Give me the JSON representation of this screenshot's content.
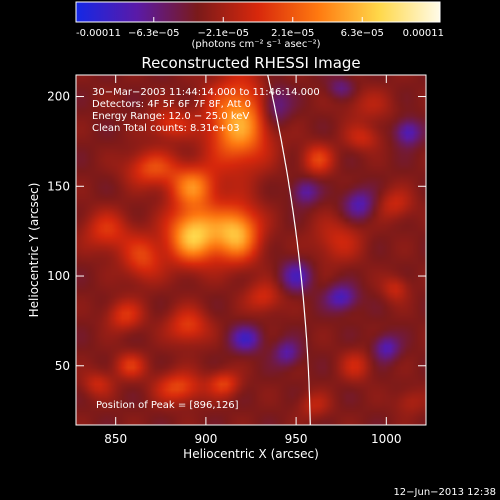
{
  "colorbar": {
    "tick_labels": [
      "-0.00011",
      "−6.3e−05",
      "−2.1e−05",
      "2.1e−05",
      "6.3e−05",
      "0.00011"
    ],
    "tick_values": [
      -0.00011,
      -6.3e-05,
      -2.1e-05,
      2.1e-05,
      6.3e-05,
      0.00011
    ],
    "range": [
      -0.00011,
      0.00011
    ],
    "unit_label": "(photons cm⁻² s⁻¹ asec⁻²)",
    "colors": [
      "#1428e6",
      "#5a1aa8",
      "#7a1a1a",
      "#d8280c",
      "#ff7a10",
      "#ffd84a",
      "#fffbe8"
    ]
  },
  "chart_data": {
    "type": "heatmap",
    "title": "Reconstructed RHESSI Image",
    "xlabel": "Heliocentric X (arcsec)",
    "ylabel": "Heliocentric Y (arcsec)",
    "xlim": [
      828,
      1022
    ],
    "ylim": [
      17,
      212
    ],
    "x_ticks": [
      850,
      900,
      950,
      1000
    ],
    "y_ticks": [
      50,
      100,
      150,
      200
    ],
    "x_tick_labels": [
      "850",
      "900",
      "950",
      "1000"
    ],
    "y_tick_labels": [
      "50",
      "100",
      "150",
      "200"
    ],
    "peak": [
      896,
      126
    ],
    "sources": [
      {
        "x": 893,
        "y": 123,
        "sx": 10,
        "sy": 11,
        "a": 0.000105
      },
      {
        "x": 917,
        "y": 124,
        "sx": 9,
        "sy": 11,
        "a": 9.5e-05
      },
      {
        "x": 918,
        "y": 185,
        "sx": 12,
        "sy": 17,
        "a": 9e-05
      },
      {
        "x": 893,
        "y": 150,
        "sx": 9,
        "sy": 8,
        "a": 7e-05
      },
      {
        "x": 870,
        "y": 160,
        "sx": 10,
        "sy": 7,
        "a": 5e-05
      },
      {
        "x": 880,
        "y": 185,
        "sx": 8,
        "sy": 6,
        "a": 4e-05
      },
      {
        "x": 865,
        "y": 110,
        "sx": 8,
        "sy": 9,
        "a": 4.5e-05
      },
      {
        "x": 845,
        "y": 125,
        "sx": 9,
        "sy": 8,
        "a": 4e-05
      },
      {
        "x": 855,
        "y": 78,
        "sx": 7,
        "sy": 6,
        "a": 4e-05
      },
      {
        "x": 890,
        "y": 72,
        "sx": 8,
        "sy": 7,
        "a": 4.5e-05
      },
      {
        "x": 858,
        "y": 50,
        "sx": 6,
        "sy": 5,
        "a": 4e-05
      },
      {
        "x": 885,
        "y": 38,
        "sx": 9,
        "sy": 6,
        "a": 5e-05
      },
      {
        "x": 910,
        "y": 40,
        "sx": 6,
        "sy": 5,
        "a": 4.5e-05
      },
      {
        "x": 840,
        "y": 40,
        "sx": 6,
        "sy": 5,
        "a": 3e-05
      },
      {
        "x": 932,
        "y": 88,
        "sx": 7,
        "sy": 6,
        "a": 3.5e-05
      },
      {
        "x": 962,
        "y": 165,
        "sx": 6,
        "sy": 6,
        "a": 4.5e-05
      },
      {
        "x": 987,
        "y": 177,
        "sx": 7,
        "sy": 5,
        "a": 3e-05
      },
      {
        "x": 973,
        "y": 120,
        "sx": 10,
        "sy": 9,
        "a": 3e-05
      },
      {
        "x": 1005,
        "y": 140,
        "sx": 7,
        "sy": 6,
        "a": 3e-05
      },
      {
        "x": 990,
        "y": 195,
        "sx": 10,
        "sy": 7,
        "a": 2e-05
      },
      {
        "x": 1005,
        "y": 93,
        "sx": 5,
        "sy": 5,
        "a": 3e-05
      },
      {
        "x": 983,
        "y": 50,
        "sx": 6,
        "sy": 6,
        "a": 3e-05
      },
      {
        "x": 1013,
        "y": 30,
        "sx": 6,
        "sy": 5,
        "a": 2e-05
      },
      {
        "x": 960,
        "y": 28,
        "sx": 6,
        "sy": 5,
        "a": 2.5e-05
      },
      {
        "x": 1012,
        "y": 180,
        "sx": 5,
        "sy": 5,
        "a": -5e-05
      },
      {
        "x": 985,
        "y": 140,
        "sx": 6,
        "sy": 6,
        "a": -4.5e-05
      },
      {
        "x": 922,
        "y": 65,
        "sx": 6,
        "sy": 5,
        "a": -5e-05
      },
      {
        "x": 945,
        "y": 57,
        "sx": 5,
        "sy": 5,
        "a": -4e-05
      },
      {
        "x": 975,
        "y": 88,
        "sx": 6,
        "sy": 5,
        "a": -5e-05
      },
      {
        "x": 1000,
        "y": 60,
        "sx": 5,
        "sy": 5,
        "a": -4.5e-05
      },
      {
        "x": 950,
        "y": 100,
        "sx": 6,
        "sy": 6,
        "a": -4.5e-05
      },
      {
        "x": 955,
        "y": 147,
        "sx": 5,
        "sy": 5,
        "a": -4e-05
      },
      {
        "x": 938,
        "y": 195,
        "sx": 6,
        "sy": 8,
        "a": -4.5e-05
      },
      {
        "x": 975,
        "y": 205,
        "sx": 5,
        "sy": 4,
        "a": -3e-05
      }
    ]
  },
  "annotations": {
    "time": "30−Mar−2003 11:44:14.000 to 11:46:14.000",
    "detectors": "Detectors: 4F 5F 6F 7F 8F, Att 0",
    "energy": "Energy Range: 12.0 − 25.0 keV",
    "clean": "Clean    Total counts: 8.31e+03",
    "peak": "Position of Peak = [896,126]"
  },
  "footer": {
    "date": "12−Jun−2013 12:38"
  }
}
